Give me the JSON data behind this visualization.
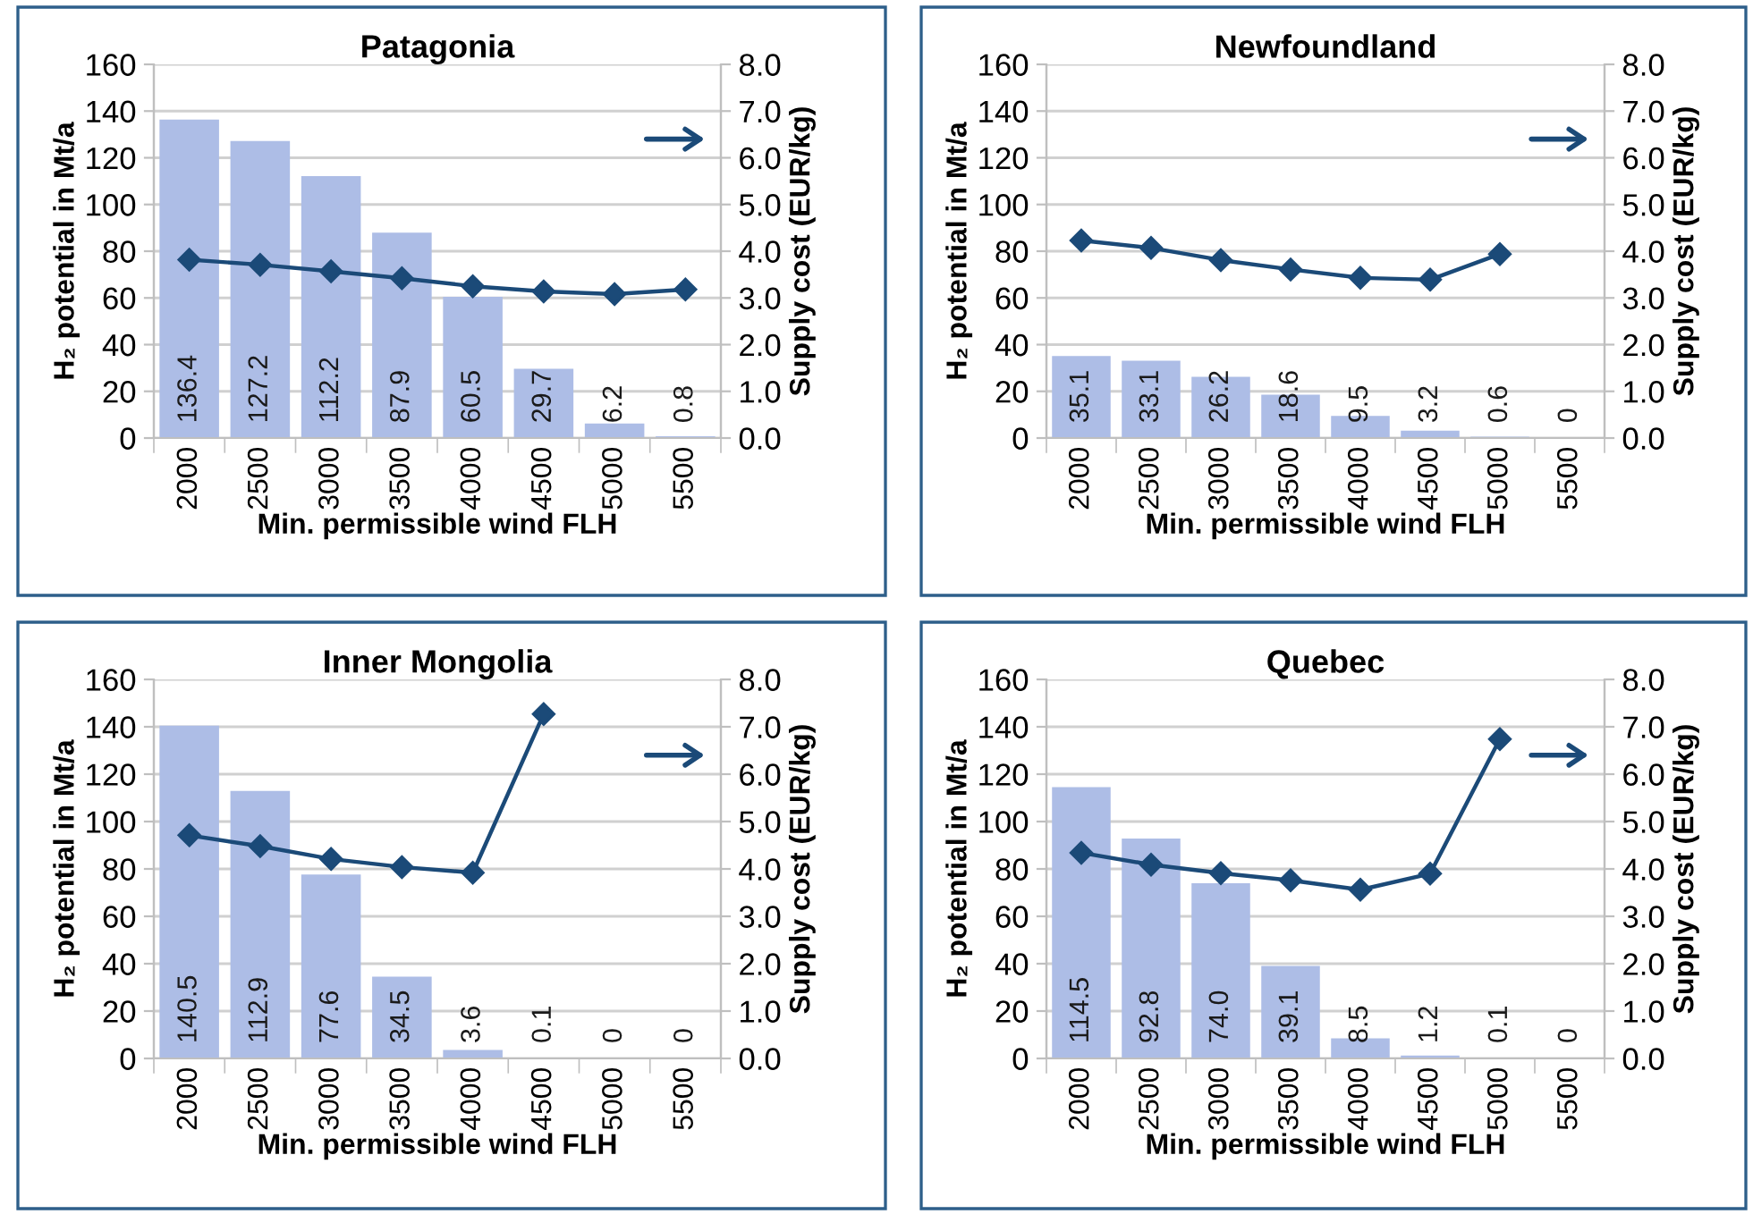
{
  "chart_data": [
    {
      "type": "bar",
      "title": "Patagonia",
      "xlabel": "Min. permissible wind FLH",
      "ylabel": "H₂ potential in Mt/a",
      "y2label": "Supply cost (EUR/kg)",
      "categories": [
        "2000",
        "2500",
        "3000",
        "3500",
        "4000",
        "4500",
        "5000",
        "5500"
      ],
      "series": [
        {
          "color": "#adbde6",
          "data_labels": true,
          "values": [
            136.4,
            127.2,
            112.2,
            87.9,
            60.5,
            29.7,
            6.2,
            0.8
          ]
        },
        {
          "type": "line",
          "axis": "y2",
          "color": "#1b4a78",
          "marker": "diamond",
          "values": [
            3.82,
            3.71,
            3.57,
            3.42,
            3.25,
            3.14,
            3.08,
            3.18
          ]
        }
      ],
      "ylim": [
        0,
        160
      ],
      "yticks": [
        0,
        20,
        40,
        60,
        80,
        100,
        120,
        140,
        160
      ],
      "y2lim": [
        0,
        8
      ],
      "y2ticks": [
        {
          "value": 0,
          "label": "0.0"
        },
        {
          "value": 1,
          "label": "1.0"
        },
        {
          "value": 2,
          "label": "2.0"
        },
        {
          "value": 3,
          "label": "3.0"
        },
        {
          "value": 4,
          "label": "4.0"
        },
        {
          "value": 5,
          "label": "5.0"
        },
        {
          "value": 6,
          "label": "6.0"
        },
        {
          "value": 7,
          "label": "7.0"
        },
        {
          "value": 8,
          "label": "8.0"
        }
      ],
      "grid": "y"
    },
    {
      "type": "bar",
      "title": "Newfoundland",
      "xlabel": "Min. permissible wind FLH",
      "ylabel": "H₂ potential in Mt/a",
      "y2label": "Supply cost (EUR/kg)",
      "categories": [
        "2000",
        "2500",
        "3000",
        "3500",
        "4000",
        "4500",
        "5000",
        "5500"
      ],
      "series": [
        {
          "color": "#adbde6",
          "data_labels": true,
          "values": [
            35.1,
            33.1,
            26.2,
            18.6,
            9.5,
            3.2,
            0.6,
            0
          ]
        },
        {
          "type": "line",
          "axis": "y2",
          "color": "#1b4a78",
          "marker": "diamond",
          "values": [
            4.23,
            4.07,
            3.81,
            3.61,
            3.43,
            3.39,
            3.94,
            null
          ]
        }
      ],
      "ylim": [
        0,
        160
      ],
      "yticks": [
        0,
        20,
        40,
        60,
        80,
        100,
        120,
        140,
        160
      ],
      "y2lim": [
        0,
        8
      ],
      "y2ticks": [
        {
          "value": 0,
          "label": "0.0"
        },
        {
          "value": 1,
          "label": "1.0"
        },
        {
          "value": 2,
          "label": "2.0"
        },
        {
          "value": 3,
          "label": "3.0"
        },
        {
          "value": 4,
          "label": "4.0"
        },
        {
          "value": 5,
          "label": "5.0"
        },
        {
          "value": 6,
          "label": "6.0"
        },
        {
          "value": 7,
          "label": "7.0"
        },
        {
          "value": 8,
          "label": "8.0"
        }
      ],
      "grid": "y"
    },
    {
      "type": "bar",
      "title": "Inner Mongolia",
      "xlabel": "Min. permissible wind FLH",
      "ylabel": "H₂ potential in Mt/a",
      "y2label": "Supply cost (EUR/kg)",
      "categories": [
        "2000",
        "2500",
        "3000",
        "3500",
        "4000",
        "4500",
        "5000",
        "5500"
      ],
      "series": [
        {
          "color": "#adbde6",
          "data_labels": true,
          "values": [
            140.5,
            112.9,
            77.6,
            34.5,
            3.6,
            0.1,
            0,
            0
          ]
        },
        {
          "type": "line",
          "axis": "y2",
          "color": "#1b4a78",
          "marker": "diamond",
          "values": [
            4.71,
            4.48,
            4.21,
            4.04,
            3.92,
            7.27,
            null,
            null
          ]
        }
      ],
      "ylim": [
        0,
        160
      ],
      "yticks": [
        0,
        20,
        40,
        60,
        80,
        100,
        120,
        140,
        160
      ],
      "y2lim": [
        0,
        8
      ],
      "y2ticks": [
        {
          "value": 0,
          "label": "0.0"
        },
        {
          "value": 1,
          "label": "1.0"
        },
        {
          "value": 2,
          "label": "2.0"
        },
        {
          "value": 3,
          "label": "3.0"
        },
        {
          "value": 4,
          "label": "4.0"
        },
        {
          "value": 5,
          "label": "5.0"
        },
        {
          "value": 6,
          "label": "6.0"
        },
        {
          "value": 7,
          "label": "7.0"
        },
        {
          "value": 8,
          "label": "8.0"
        }
      ],
      "grid": "y"
    },
    {
      "type": "bar",
      "title": "Quebec",
      "xlabel": "Min. permissible wind FLH",
      "ylabel": "H₂ potential in Mt/a",
      "y2label": "Supply cost (EUR/kg)",
      "categories": [
        "2000",
        "2500",
        "3000",
        "3500",
        "4000",
        "4500",
        "5000",
        "5500"
      ],
      "series": [
        {
          "color": "#adbde6",
          "values": [
            114.5,
            92.8,
            74.0,
            39.1,
            8.5,
            1.2,
            0.1,
            0
          ],
          "value_labels": [
            "114.5",
            "92.8",
            "74.0",
            "39.1",
            "8.5",
            "1.2",
            "0.1",
            "0"
          ]
        },
        {
          "type": "line",
          "axis": "y2",
          "color": "#1b4a78",
          "marker": "diamond",
          "values": [
            4.34,
            4.09,
            3.91,
            3.76,
            3.56,
            3.9,
            6.74,
            null
          ]
        }
      ],
      "ylim": [
        0,
        160
      ],
      "yticks": [
        0,
        20,
        40,
        60,
        80,
        100,
        120,
        140,
        160
      ],
      "y2lim": [
        0,
        8
      ],
      "y2ticks": [
        {
          "value": 0,
          "label": "0.0"
        },
        {
          "value": 1,
          "label": "1.0"
        },
        {
          "value": 2,
          "label": "2.0"
        },
        {
          "value": 3,
          "label": "3.0"
        },
        {
          "value": 4,
          "label": "4.0"
        },
        {
          "value": 5,
          "label": "5.0"
        },
        {
          "value": 6,
          "label": "6.0"
        },
        {
          "value": 7,
          "label": "7.0"
        },
        {
          "value": 8,
          "label": "8.0"
        }
      ],
      "grid": "y"
    }
  ]
}
